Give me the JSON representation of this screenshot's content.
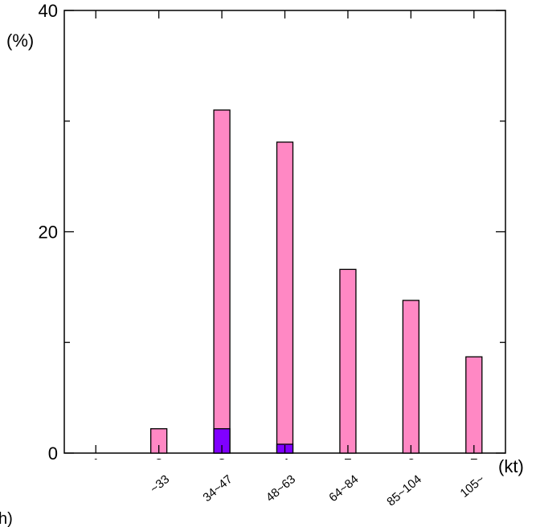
{
  "chart_data": {
    "type": "bar",
    "categories": [
      "~33",
      "34~47",
      "48~63",
      "64~84",
      "85~104",
      "105~"
    ],
    "series": [
      {
        "values": [
          2.2,
          31.0,
          28.1,
          16.6,
          13.8,
          8.7
        ],
        "color": "#ff88c4"
      },
      {
        "values": [
          0.0,
          2.2,
          0.8,
          0.0,
          0.0,
          0.0
        ],
        "color": "#8000ff"
      }
    ],
    "ylabel": "(%)",
    "xlabel": "(kt)",
    "ylim": [
      0,
      40
    ],
    "yticks": [
      "0",
      "20",
      "40"
    ],
    "bottom_axis_numbers": [
      "1",
      "2",
      "3",
      "4",
      "5",
      "6",
      "5"
    ],
    "corner_text": "h)",
    "grid": false,
    "legend": "none"
  }
}
